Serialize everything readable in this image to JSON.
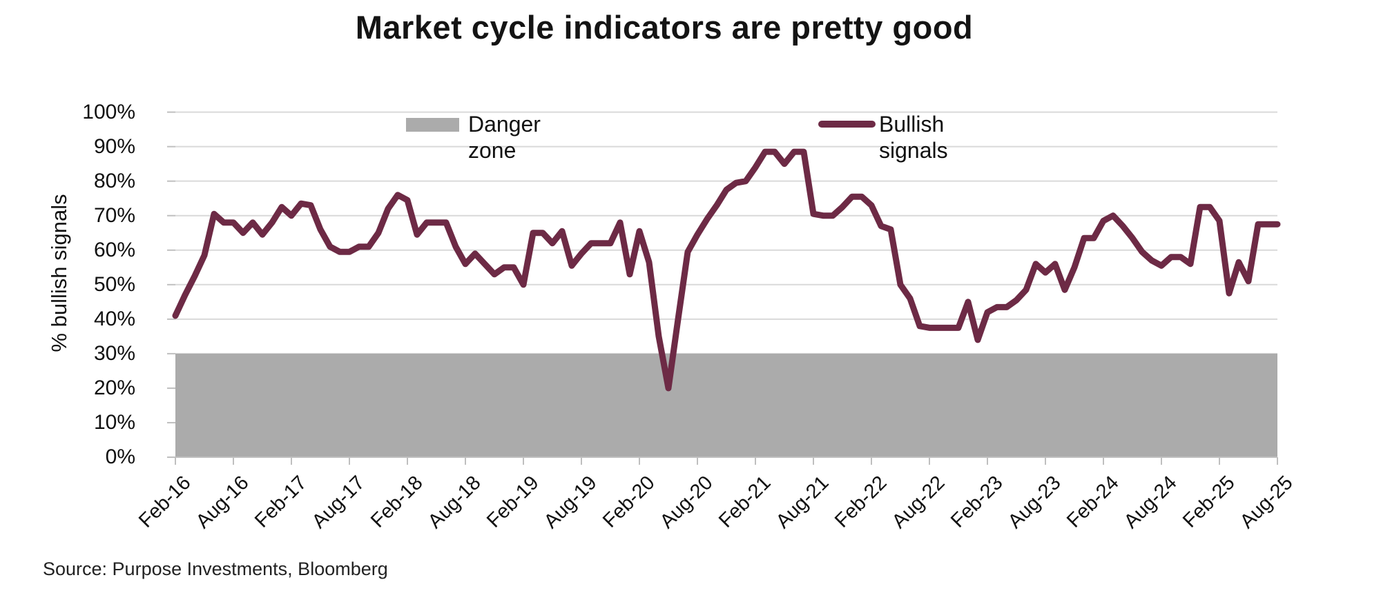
{
  "title": "Market cycle indicators are pretty good",
  "source": "Source: Purpose Investments, Bloomberg",
  "colors": {
    "line": "#6D2A45",
    "danger_zone": "#ABABAB",
    "gridline": "#D9D9D9",
    "axis": "#BFBFBF",
    "background": "#FFFFFF"
  },
  "legend": {
    "danger_label": "Danger zone",
    "bullish_label": "Bullish signals"
  },
  "y_axis": {
    "title": "% bullish signals",
    "ticks": [
      "100%",
      "90%",
      "80%",
      "70%",
      "60%",
      "50%",
      "40%",
      "30%",
      "20%",
      "10%",
      "0%"
    ]
  },
  "x_axis": {
    "tick_labels": [
      "Feb-16",
      "Aug-16",
      "Feb-17",
      "Aug-17",
      "Feb-18",
      "Aug-18",
      "Feb-19",
      "Aug-19",
      "Feb-20",
      "Aug-20",
      "Feb-21",
      "Aug-21",
      "Feb-22",
      "Aug-22",
      "Feb-23",
      "Aug-23",
      "Feb-24",
      "Aug-24",
      "Feb-25",
      "Aug-25"
    ]
  },
  "chart_data": {
    "type": "line",
    "title": "Market cycle indicators are pretty good",
    "xlabel": "",
    "ylabel": "% bullish signals",
    "ylim": [
      0,
      100
    ],
    "grid": true,
    "legend_position": "top-inside",
    "danger_zone": {
      "label": "Danger zone",
      "from": 0,
      "to": 30,
      "color": "#ABABAB"
    },
    "series": [
      {
        "name": "Bullish signals",
        "color": "#6D2A45",
        "points": [
          [
            "Feb-16",
            41
          ],
          [
            "Mar-16",
            47
          ],
          [
            "Apr-16",
            52.5
          ],
          [
            "May-16",
            58.5
          ],
          [
            "Jun-16",
            70.5
          ],
          [
            "Jul-16",
            68
          ],
          [
            "Aug-16",
            68
          ],
          [
            "Sep-16",
            65
          ],
          [
            "Oct-16",
            68
          ],
          [
            "Nov-16",
            64.5
          ],
          [
            "Dec-16",
            68
          ],
          [
            "Jan-17",
            72.5
          ],
          [
            "Feb-17",
            70
          ],
          [
            "Mar-17",
            73.5
          ],
          [
            "Apr-17",
            73
          ],
          [
            "May-17",
            66
          ],
          [
            "Jun-17",
            61
          ],
          [
            "Jul-17",
            59.5
          ],
          [
            "Aug-17",
            59.5
          ],
          [
            "Sep-17",
            61
          ],
          [
            "Oct-17",
            61
          ],
          [
            "Nov-17",
            65
          ],
          [
            "Dec-17",
            72
          ],
          [
            "Jan-18",
            76
          ],
          [
            "Feb-18",
            74.5
          ],
          [
            "Mar-18",
            64.5
          ],
          [
            "Apr-18",
            68
          ],
          [
            "May-18",
            68
          ],
          [
            "Jun-18",
            68
          ],
          [
            "Jul-18",
            61
          ],
          [
            "Aug-18",
            56
          ],
          [
            "Sep-18",
            59
          ],
          [
            "Oct-18",
            56
          ],
          [
            "Nov-18",
            53
          ],
          [
            "Dec-18",
            55
          ],
          [
            "Jan-19",
            55
          ],
          [
            "Feb-19",
            50
          ],
          [
            "Mar-19",
            65
          ],
          [
            "Apr-19",
            65
          ],
          [
            "May-19",
            62
          ],
          [
            "Jun-19",
            65.5
          ],
          [
            "Jul-19",
            55.5
          ],
          [
            "Aug-19",
            59
          ],
          [
            "Sep-19",
            62
          ],
          [
            "Oct-19",
            62
          ],
          [
            "Nov-19",
            62
          ],
          [
            "Dec-19",
            68
          ],
          [
            "Jan-20",
            53
          ],
          [
            "Feb-20",
            65.5
          ],
          [
            "Mar-20",
            56.5
          ],
          [
            "Apr-20",
            35
          ],
          [
            "May-20",
            20
          ],
          [
            "Jun-20",
            40
          ],
          [
            "Jul-20",
            59.5
          ],
          [
            "Aug-20",
            64.5
          ],
          [
            "Sep-20",
            69
          ],
          [
            "Oct-20",
            73
          ],
          [
            "Nov-20",
            77.5
          ],
          [
            "Dec-20",
            79.5
          ],
          [
            "Jan-21",
            80
          ],
          [
            "Feb-21",
            84
          ],
          [
            "Mar-21",
            88.5
          ],
          [
            "Apr-21",
            88.5
          ],
          [
            "May-21",
            85
          ],
          [
            "Jun-21",
            88.5
          ],
          [
            "Jul-21",
            88.5
          ],
          [
            "Aug-21",
            70.5
          ],
          [
            "Sep-21",
            70
          ],
          [
            "Oct-21",
            70
          ],
          [
            "Nov-21",
            72.5
          ],
          [
            "Dec-21",
            75.5
          ],
          [
            "Jan-22",
            75.5
          ],
          [
            "Feb-22",
            73
          ],
          [
            "Mar-22",
            67
          ],
          [
            "Apr-22",
            66
          ],
          [
            "May-22",
            50
          ],
          [
            "Jun-22",
            46
          ],
          [
            "Jul-22",
            38
          ],
          [
            "Aug-22",
            37.5
          ],
          [
            "Sep-22",
            37.5
          ],
          [
            "Oct-22",
            37.5
          ],
          [
            "Nov-22",
            37.5
          ],
          [
            "Dec-22",
            45
          ],
          [
            "Jan-23",
            34
          ],
          [
            "Feb-23",
            42
          ],
          [
            "Mar-23",
            43.5
          ],
          [
            "Apr-23",
            43.5
          ],
          [
            "May-23",
            45.5
          ],
          [
            "Jun-23",
            48.5
          ],
          [
            "Jul-23",
            56
          ],
          [
            "Aug-23",
            53.5
          ],
          [
            "Sep-23",
            56
          ],
          [
            "Oct-23",
            48.5
          ],
          [
            "Nov-23",
            55
          ],
          [
            "Dec-23",
            63.5
          ],
          [
            "Jan-24",
            63.5
          ],
          [
            "Feb-24",
            68.5
          ],
          [
            "Mar-24",
            70
          ],
          [
            "Apr-24",
            67
          ],
          [
            "May-24",
            63.5
          ],
          [
            "Jun-24",
            59.5
          ],
          [
            "Jul-24",
            57
          ],
          [
            "Aug-24",
            55.5
          ],
          [
            "Sep-24",
            58
          ],
          [
            "Oct-24",
            58
          ],
          [
            "Nov-24",
            56
          ],
          [
            "Dec-24",
            72.5
          ],
          [
            "Jan-25",
            72.5
          ],
          [
            "Feb-25",
            68.5
          ],
          [
            "Mar-25",
            47.5
          ],
          [
            "Apr-25",
            56.5
          ],
          [
            "May-25",
            51
          ],
          [
            "Jun-25",
            67.5
          ],
          [
            "Jul-25",
            67.5
          ],
          [
            "Aug-25",
            67.5
          ]
        ]
      }
    ]
  }
}
